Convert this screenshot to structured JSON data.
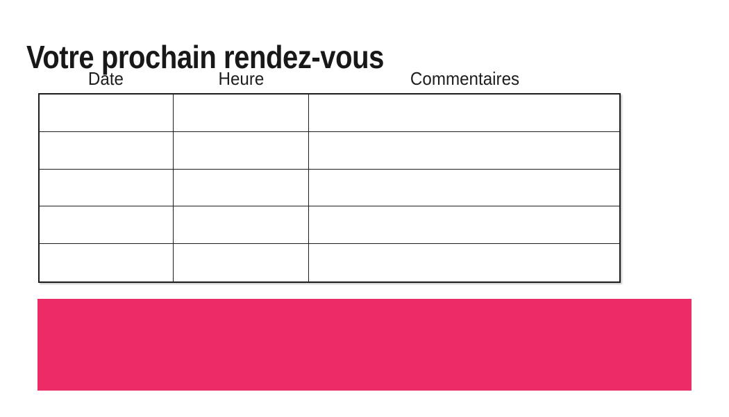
{
  "page": {
    "title": "Votre prochain rendez-vous",
    "background_color": "#ffffff"
  },
  "table": {
    "headers": [
      "Date",
      "Heure",
      "Commentaires"
    ],
    "rows": [
      {
        "date": "",
        "heure": "",
        "commentaires": ""
      },
      {
        "date": "",
        "heure": "",
        "commentaires": ""
      },
      {
        "date": "",
        "heure": "",
        "commentaires": ""
      },
      {
        "date": "",
        "heure": "",
        "commentaires": ""
      },
      {
        "date": "",
        "heure": "",
        "commentaires": ""
      }
    ],
    "border_color": "#1c1c1c"
  },
  "banner": {
    "label": "",
    "color": "#ED2B67"
  }
}
